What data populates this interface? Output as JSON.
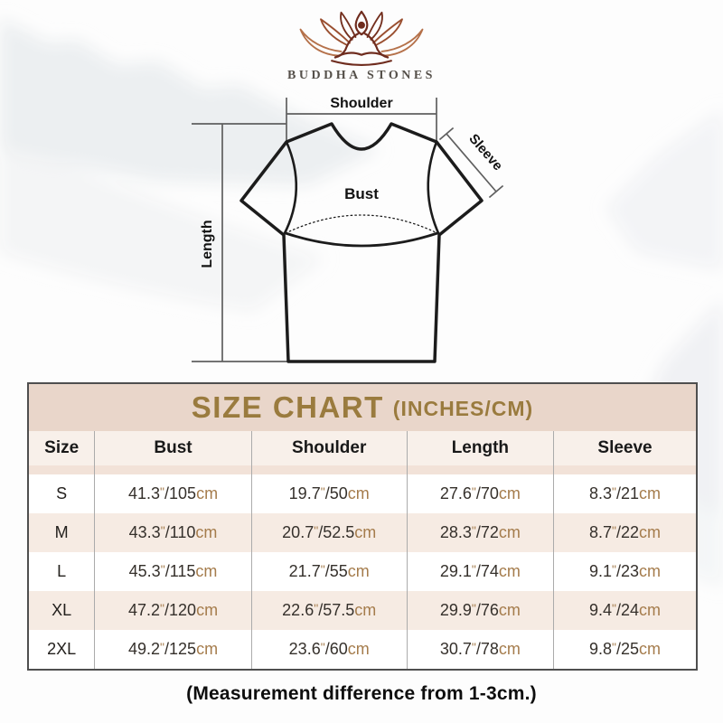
{
  "brand": {
    "name": "BUDDHA STONES",
    "logo_icon": "lotus-meditation"
  },
  "diagram": {
    "shoulder_label": "Shoulder",
    "sleeve_label": "Sleeve",
    "bust_label": "Bust",
    "length_label": "Length"
  },
  "size_chart": {
    "title": "SIZE CHART",
    "title_suffix": "(INCHES/CM)",
    "units": {
      "inch_mark": "\"",
      "separator": "/",
      "cm_label": "cm"
    },
    "columns": [
      "Size",
      "Bust",
      "Shoulder",
      "Length",
      "Sleeve"
    ],
    "rows": [
      {
        "size": "S",
        "cells": [
          {
            "in": "41.3",
            "cm": "105"
          },
          {
            "in": "19.7",
            "cm": "50"
          },
          {
            "in": "27.6",
            "cm": "70"
          },
          {
            "in": "8.3",
            "cm": "21"
          }
        ]
      },
      {
        "size": "M",
        "cells": [
          {
            "in": "43.3",
            "cm": "110"
          },
          {
            "in": "20.7",
            "cm": "52.5"
          },
          {
            "in": "28.3",
            "cm": "72"
          },
          {
            "in": "8.7",
            "cm": "22"
          }
        ]
      },
      {
        "size": "L",
        "cells": [
          {
            "in": "45.3",
            "cm": "115"
          },
          {
            "in": "21.7",
            "cm": "55"
          },
          {
            "in": "29.1",
            "cm": "74"
          },
          {
            "in": "9.1",
            "cm": "23"
          }
        ]
      },
      {
        "size": "XL",
        "cells": [
          {
            "in": "47.2",
            "cm": "120"
          },
          {
            "in": "22.6",
            "cm": "57.5"
          },
          {
            "in": "29.9",
            "cm": "76"
          },
          {
            "in": "9.4",
            "cm": "24"
          }
        ]
      },
      {
        "size": "2XL",
        "cells": [
          {
            "in": "49.2",
            "cm": "125"
          },
          {
            "in": "23.6",
            "cm": "60"
          },
          {
            "in": "30.7",
            "cm": "78"
          },
          {
            "in": "9.8",
            "cm": "25"
          }
        ]
      }
    ]
  },
  "footnote": "(Measurement difference from 1-3cm.)",
  "colors": {
    "title_band_bg": "#e9d6ca",
    "title_text": "#9a7b3e",
    "header_row_bg": "#f8f0ea",
    "row_alt_bg": "#f6ebe3",
    "value_text": "#35302b",
    "unit_text": "#a57c4c",
    "table_border": "#4f4f4f",
    "logo_dark": "#74301f",
    "logo_mid": "#9a4f30",
    "logo_light": "#b5714a"
  }
}
